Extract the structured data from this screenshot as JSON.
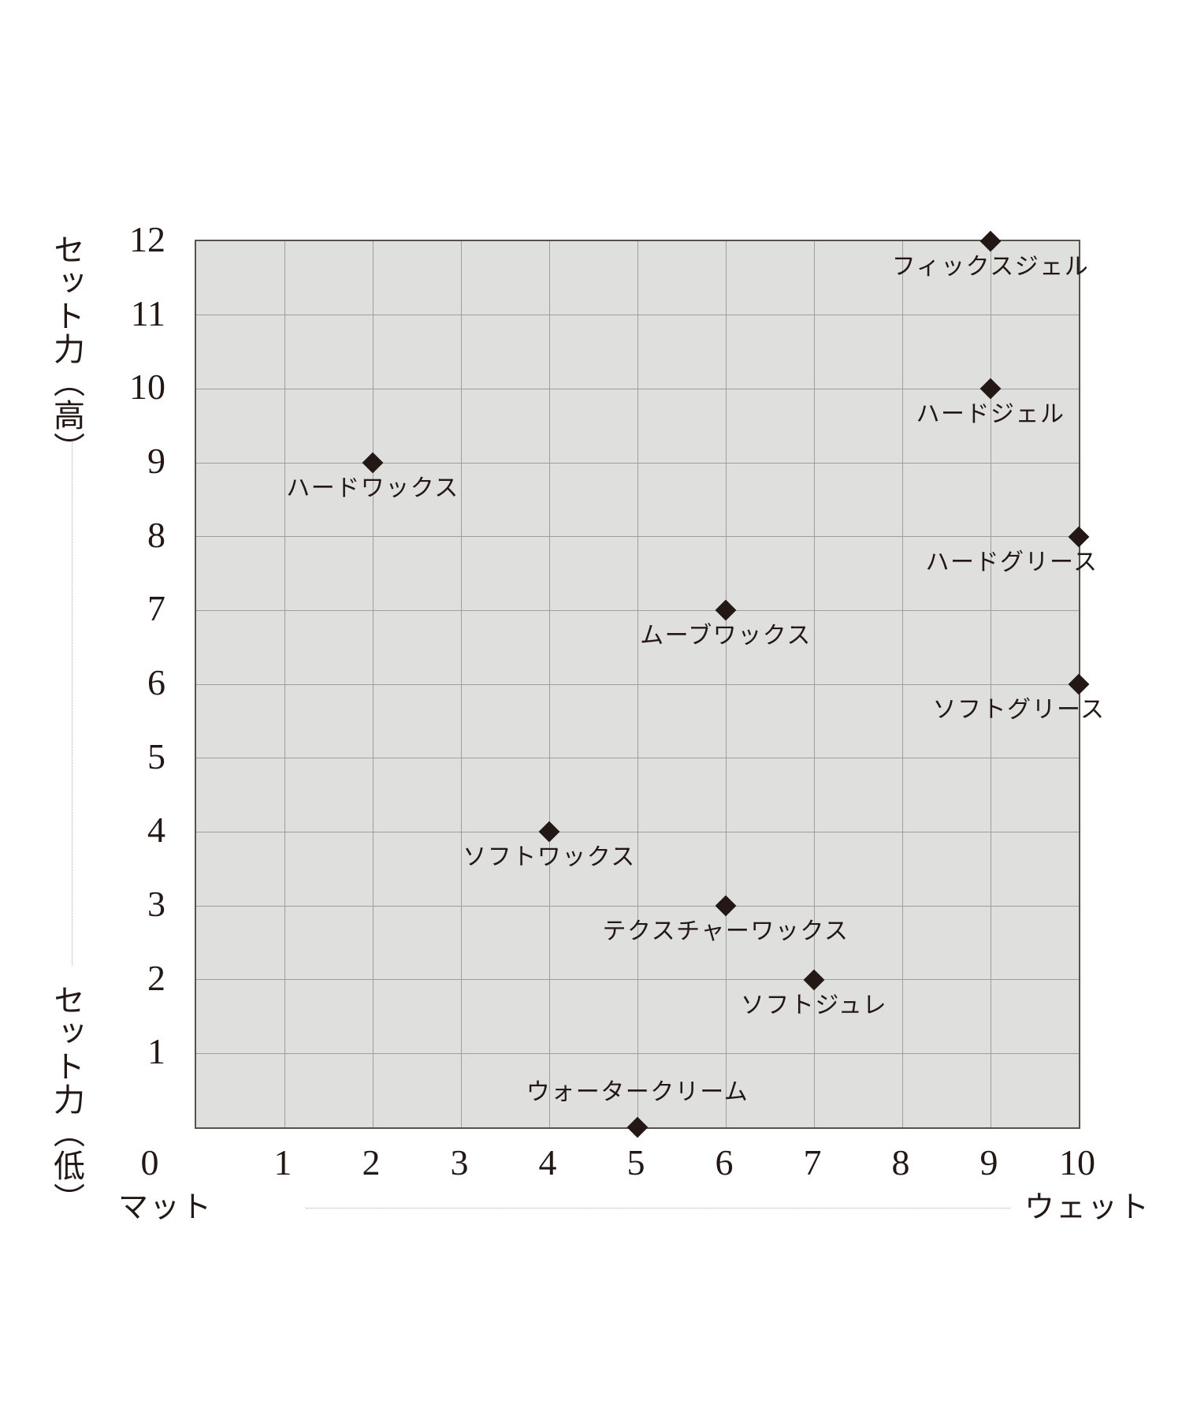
{
  "chart_data": {
    "type": "scatter",
    "description": "Hair styling product positioning map: hold strength vs matte-to-wet finish",
    "marker_shape": "diamond",
    "grid": true,
    "x_axis": {
      "min": 0,
      "max": 10,
      "ticks": [
        0,
        1,
        2,
        3,
        4,
        5,
        6,
        7,
        8,
        9,
        10
      ],
      "left_label": "マット",
      "right_label": "ウェット"
    },
    "y_axis": {
      "min": 0,
      "max": 12,
      "ticks": [
        1,
        2,
        3,
        4,
        5,
        6,
        7,
        8,
        9,
        10,
        11,
        12
      ],
      "top_label": "セット力（高）",
      "bottom_label": "セット力（低）"
    },
    "points": [
      {
        "label": "フィックスジェル",
        "x": 9,
        "y": 12,
        "label_pos": "below",
        "label_dx": 0
      },
      {
        "label": "ハードジェル",
        "x": 9,
        "y": 10,
        "label_pos": "below",
        "label_dx": 0
      },
      {
        "label": "ハードワックス",
        "x": 2,
        "y": 9,
        "label_pos": "below",
        "label_dx": 0
      },
      {
        "label": "ハードグリース",
        "x": 10,
        "y": 8,
        "label_pos": "below",
        "label_dx": -85
      },
      {
        "label": "ムーブワックス",
        "x": 6,
        "y": 7,
        "label_pos": "below",
        "label_dx": 0
      },
      {
        "label": "ソフトグリース",
        "x": 10,
        "y": 6,
        "label_pos": "below",
        "label_dx": -76
      },
      {
        "label": "ソフトワックス",
        "x": 4,
        "y": 4,
        "label_pos": "below",
        "label_dx": 0
      },
      {
        "label": "テクスチャーワックス",
        "x": 6,
        "y": 3,
        "label_pos": "below",
        "label_dx": 0
      },
      {
        "label": "ソフトジュレ",
        "x": 7,
        "y": 2,
        "label_pos": "below",
        "label_dx": 0
      },
      {
        "label": "ウォータークリーム",
        "x": 5,
        "y": 0,
        "label_pos": "above",
        "label_dx": 0
      }
    ],
    "colors": {
      "plot_background": "#dfe0de",
      "gridline": "#9e9e9e",
      "plot_border": "#56524e",
      "marker": "#231815",
      "text": "#231815",
      "continuum_line": "#b0b0b0"
    }
  }
}
